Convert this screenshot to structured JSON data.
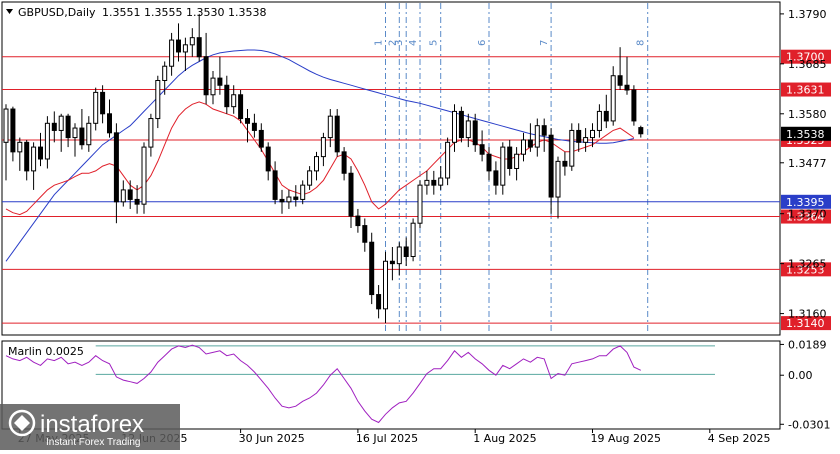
{
  "header": {
    "symbol_label": "GBPUSD,Daily",
    "ohlc_label": "1.3551 1.3555 1.3530 1.3538"
  },
  "watermark": {
    "brand": "instaforex",
    "tagline": "Instant Forex Trading"
  },
  "colors": {
    "background": "#ffffff",
    "grid": "#c8ccd0",
    "candle_bull": "#ffffff",
    "candle_bear": "#000000",
    "candle_outline": "#000000",
    "ma_fast": "#e0202a",
    "ma_slow": "#2a3ec8",
    "level_red": "#e0202a",
    "level_blue": "#2a3ec8",
    "level_label_red": "#e0202a",
    "level_label_blue": "#2a3ec8",
    "cycle_line": "#5a8ac8",
    "marlin": "#a020c0",
    "marlin_channel": "#5aa8a0"
  },
  "chart_data": [
    {
      "type": "candlestick",
      "title": "GBPUSD,Daily",
      "ylim": [
        1.3115,
        1.3815
      ],
      "y_ticks": [
        1.379,
        1.3685,
        1.358,
        1.3477,
        1.337,
        1.3265,
        1.316
      ],
      "y_tick_labels": [
        "1.3790",
        "1.3685",
        "1.3580",
        "1.3477",
        "1.3370",
        "1.3265",
        "1.3160"
      ],
      "current_price_label": "1.3538",
      "current_price": 1.3538,
      "x_tick_labels": [
        "27 May 2025",
        "12 Jun 2025",
        "30 Jun 2025",
        "16 Jul 2025",
        "1 Aug 2025",
        "19 Aug 2025",
        "4 Sep 2025"
      ],
      "x_tick_indices": [
        2,
        17,
        34,
        51,
        68,
        85,
        102
      ],
      "candles": [
        {
          "o": 1.352,
          "h": 1.36,
          "l": 1.344,
          "c": 1.359
        },
        {
          "o": 1.359,
          "h": 1.3595,
          "l": 1.348,
          "c": 1.35
        },
        {
          "o": 1.35,
          "h": 1.353,
          "l": 1.346,
          "c": 1.352
        },
        {
          "o": 1.352,
          "h": 1.3525,
          "l": 1.344,
          "c": 1.346
        },
        {
          "o": 1.346,
          "h": 1.352,
          "l": 1.342,
          "c": 1.351
        },
        {
          "o": 1.351,
          "h": 1.354,
          "l": 1.347,
          "c": 1.3485
        },
        {
          "o": 1.3485,
          "h": 1.3575,
          "l": 1.3465,
          "c": 1.356
        },
        {
          "o": 1.356,
          "h": 1.3585,
          "l": 1.352,
          "c": 1.3545
        },
        {
          "o": 1.3545,
          "h": 1.358,
          "l": 1.35,
          "c": 1.3575
        },
        {
          "o": 1.3575,
          "h": 1.358,
          "l": 1.351,
          "c": 1.353
        },
        {
          "o": 1.353,
          "h": 1.356,
          "l": 1.349,
          "c": 1.355
        },
        {
          "o": 1.355,
          "h": 1.359,
          "l": 1.3505,
          "c": 1.3515
        },
        {
          "o": 1.3515,
          "h": 1.3575,
          "l": 1.35,
          "c": 1.356
        },
        {
          "o": 1.356,
          "h": 1.3635,
          "l": 1.3545,
          "c": 1.3625
        },
        {
          "o": 1.3625,
          "h": 1.364,
          "l": 1.356,
          "c": 1.358
        },
        {
          "o": 1.358,
          "h": 1.361,
          "l": 1.353,
          "c": 1.354
        },
        {
          "o": 1.354,
          "h": 1.356,
          "l": 1.335,
          "c": 1.3395
        },
        {
          "o": 1.3395,
          "h": 1.344,
          "l": 1.3385,
          "c": 1.342
        },
        {
          "o": 1.342,
          "h": 1.344,
          "l": 1.338,
          "c": 1.34
        },
        {
          "o": 1.34,
          "h": 1.343,
          "l": 1.337,
          "c": 1.339
        },
        {
          "o": 1.339,
          "h": 1.352,
          "l": 1.337,
          "c": 1.351
        },
        {
          "o": 1.351,
          "h": 1.358,
          "l": 1.349,
          "c": 1.357
        },
        {
          "o": 1.357,
          "h": 1.366,
          "l": 1.355,
          "c": 1.365
        },
        {
          "o": 1.365,
          "h": 1.369,
          "l": 1.362,
          "c": 1.368
        },
        {
          "o": 1.368,
          "h": 1.375,
          "l": 1.366,
          "c": 1.3735
        },
        {
          "o": 1.3735,
          "h": 1.377,
          "l": 1.369,
          "c": 1.371
        },
        {
          "o": 1.371,
          "h": 1.374,
          "l": 1.367,
          "c": 1.3725
        },
        {
          "o": 1.3725,
          "h": 1.376,
          "l": 1.37,
          "c": 1.374
        },
        {
          "o": 1.374,
          "h": 1.379,
          "l": 1.369,
          "c": 1.37
        },
        {
          "o": 1.37,
          "h": 1.375,
          "l": 1.36,
          "c": 1.362
        },
        {
          "o": 1.362,
          "h": 1.367,
          "l": 1.36,
          "c": 1.3655
        },
        {
          "o": 1.3655,
          "h": 1.37,
          "l": 1.362,
          "c": 1.364
        },
        {
          "o": 1.364,
          "h": 1.366,
          "l": 1.358,
          "c": 1.3595
        },
        {
          "o": 1.3595,
          "h": 1.364,
          "l": 1.358,
          "c": 1.362
        },
        {
          "o": 1.362,
          "h": 1.363,
          "l": 1.356,
          "c": 1.357
        },
        {
          "o": 1.357,
          "h": 1.359,
          "l": 1.352,
          "c": 1.356
        },
        {
          "o": 1.356,
          "h": 1.358,
          "l": 1.353,
          "c": 1.3545
        },
        {
          "o": 1.3545,
          "h": 1.356,
          "l": 1.35,
          "c": 1.351
        },
        {
          "o": 1.351,
          "h": 1.352,
          "l": 1.344,
          "c": 1.346
        },
        {
          "o": 1.346,
          "h": 1.348,
          "l": 1.339,
          "c": 1.34
        },
        {
          "o": 1.34,
          "h": 1.342,
          "l": 1.337,
          "c": 1.3395
        },
        {
          "o": 1.3395,
          "h": 1.342,
          "l": 1.338,
          "c": 1.3405
        },
        {
          "o": 1.3405,
          "h": 1.343,
          "l": 1.3385,
          "c": 1.34
        },
        {
          "o": 1.34,
          "h": 1.344,
          "l": 1.339,
          "c": 1.343
        },
        {
          "o": 1.343,
          "h": 1.347,
          "l": 1.342,
          "c": 1.346
        },
        {
          "o": 1.346,
          "h": 1.35,
          "l": 1.344,
          "c": 1.349
        },
        {
          "o": 1.349,
          "h": 1.354,
          "l": 1.347,
          "c": 1.353
        },
        {
          "o": 1.353,
          "h": 1.359,
          "l": 1.351,
          "c": 1.3575
        },
        {
          "o": 1.3575,
          "h": 1.359,
          "l": 1.349,
          "c": 1.35
        },
        {
          "o": 1.35,
          "h": 1.351,
          "l": 1.344,
          "c": 1.3455
        },
        {
          "o": 1.3455,
          "h": 1.347,
          "l": 1.334,
          "c": 1.3365
        },
        {
          "o": 1.3365,
          "h": 1.338,
          "l": 1.333,
          "c": 1.3345
        },
        {
          "o": 1.3345,
          "h": 1.336,
          "l": 1.329,
          "c": 1.331
        },
        {
          "o": 1.331,
          "h": 1.333,
          "l": 1.318,
          "c": 1.32
        },
        {
          "o": 1.32,
          "h": 1.322,
          "l": 1.315,
          "c": 1.317
        },
        {
          "o": 1.317,
          "h": 1.329,
          "l": 1.314,
          "c": 1.327
        },
        {
          "o": 1.327,
          "h": 1.33,
          "l": 1.323,
          "c": 1.3265
        },
        {
          "o": 1.3265,
          "h": 1.331,
          "l": 1.324,
          "c": 1.33
        },
        {
          "o": 1.33,
          "h": 1.332,
          "l": 1.326,
          "c": 1.328
        },
        {
          "o": 1.328,
          "h": 1.336,
          "l": 1.327,
          "c": 1.335
        },
        {
          "o": 1.335,
          "h": 1.344,
          "l": 1.334,
          "c": 1.343
        },
        {
          "o": 1.343,
          "h": 1.346,
          "l": 1.341,
          "c": 1.344
        },
        {
          "o": 1.344,
          "h": 1.346,
          "l": 1.341,
          "c": 1.343
        },
        {
          "o": 1.343,
          "h": 1.347,
          "l": 1.342,
          "c": 1.3445
        },
        {
          "o": 1.3445,
          "h": 1.353,
          "l": 1.343,
          "c": 1.352
        },
        {
          "o": 1.352,
          "h": 1.36,
          "l": 1.35,
          "c": 1.3585
        },
        {
          "o": 1.3585,
          "h": 1.3595,
          "l": 1.352,
          "c": 1.353
        },
        {
          "o": 1.353,
          "h": 1.358,
          "l": 1.351,
          "c": 1.3565
        },
        {
          "o": 1.3565,
          "h": 1.358,
          "l": 1.35,
          "c": 1.3515
        },
        {
          "o": 1.3515,
          "h": 1.3545,
          "l": 1.348,
          "c": 1.3495
        },
        {
          "o": 1.3495,
          "h": 1.351,
          "l": 1.344,
          "c": 1.346
        },
        {
          "o": 1.346,
          "h": 1.348,
          "l": 1.341,
          "c": 1.343
        },
        {
          "o": 1.343,
          "h": 1.352,
          "l": 1.341,
          "c": 1.351
        },
        {
          "o": 1.351,
          "h": 1.3525,
          "l": 1.345,
          "c": 1.3465
        },
        {
          "o": 1.3465,
          "h": 1.351,
          "l": 1.344,
          "c": 1.3495
        },
        {
          "o": 1.3495,
          "h": 1.354,
          "l": 1.348,
          "c": 1.3525
        },
        {
          "o": 1.3525,
          "h": 1.356,
          "l": 1.35,
          "c": 1.351
        },
        {
          "o": 1.351,
          "h": 1.357,
          "l": 1.349,
          "c": 1.3555
        },
        {
          "o": 1.3555,
          "h": 1.357,
          "l": 1.35,
          "c": 1.3535
        },
        {
          "o": 1.3535,
          "h": 1.355,
          "l": 1.337,
          "c": 1.3405
        },
        {
          "o": 1.3405,
          "h": 1.349,
          "l": 1.336,
          "c": 1.348
        },
        {
          "o": 1.348,
          "h": 1.35,
          "l": 1.345,
          "c": 1.347
        },
        {
          "o": 1.347,
          "h": 1.356,
          "l": 1.346,
          "c": 1.3545
        },
        {
          "o": 1.3545,
          "h": 1.356,
          "l": 1.35,
          "c": 1.352
        },
        {
          "o": 1.352,
          "h": 1.355,
          "l": 1.35,
          "c": 1.353
        },
        {
          "o": 1.353,
          "h": 1.356,
          "l": 1.351,
          "c": 1.3545
        },
        {
          "o": 1.3545,
          "h": 1.36,
          "l": 1.353,
          "c": 1.3585
        },
        {
          "o": 1.3585,
          "h": 1.362,
          "l": 1.355,
          "c": 1.3565
        },
        {
          "o": 1.3565,
          "h": 1.368,
          "l": 1.3555,
          "c": 1.366
        },
        {
          "o": 1.366,
          "h": 1.372,
          "l": 1.363,
          "c": 1.364
        },
        {
          "o": 1.364,
          "h": 1.37,
          "l": 1.362,
          "c": 1.363
        },
        {
          "o": 1.363,
          "h": 1.364,
          "l": 1.3555,
          "c": 1.3565
        },
        {
          "o": 1.3551,
          "h": 1.3555,
          "l": 1.353,
          "c": 1.3538
        }
      ],
      "ma_fast": {
        "start_index": 0,
        "values": [
          1.338,
          1.3372,
          1.3368,
          1.3375,
          1.339,
          1.3405,
          1.342,
          1.343,
          1.3435,
          1.344,
          1.3448,
          1.3455,
          1.3455,
          1.346,
          1.347,
          1.3475,
          1.347,
          1.345,
          1.343,
          1.342,
          1.343,
          1.345,
          1.348,
          1.3515,
          1.355,
          1.3575,
          1.359,
          1.36,
          1.3605,
          1.36,
          1.359,
          1.3585,
          1.358,
          1.3575,
          1.3565,
          1.3545,
          1.3525,
          1.3505,
          1.348,
          1.3455,
          1.343,
          1.342,
          1.3415,
          1.341,
          1.3415,
          1.3425,
          1.344,
          1.3465,
          1.349,
          1.3495,
          1.3485,
          1.346,
          1.343,
          1.3395,
          1.338,
          1.339,
          1.3405,
          1.342,
          1.343,
          1.344,
          1.345,
          1.346,
          1.3475,
          1.349,
          1.3505,
          1.352,
          1.3525,
          1.3525,
          1.352,
          1.351,
          1.3495,
          1.349,
          1.3485,
          1.3485,
          1.349,
          1.35,
          1.351,
          1.352,
          1.3525,
          1.352,
          1.351,
          1.35,
          1.35,
          1.3505,
          1.351,
          1.3515,
          1.3525,
          1.3535,
          1.3545,
          1.355,
          1.354,
          1.353
        ]
      },
      "ma_slow": {
        "start_index": 0,
        "values": [
          1.327,
          1.329,
          1.331,
          1.333,
          1.335,
          1.337,
          1.339,
          1.341,
          1.3425,
          1.344,
          1.3455,
          1.347,
          1.3485,
          1.35,
          1.3515,
          1.3525,
          1.3535,
          1.3545,
          1.3555,
          1.357,
          1.3585,
          1.36,
          1.3615,
          1.363,
          1.3645,
          1.366,
          1.3672,
          1.3682,
          1.369,
          1.3698,
          1.3704,
          1.3708,
          1.371,
          1.3712,
          1.3713,
          1.3714,
          1.3714,
          1.3713,
          1.371,
          1.3706,
          1.37,
          1.3694,
          1.3686,
          1.3678,
          1.367,
          1.3663,
          1.3657,
          1.3652,
          1.3648,
          1.3644,
          1.364,
          1.3636,
          1.3632,
          1.3628,
          1.3624,
          1.362,
          1.3616,
          1.3612,
          1.3608,
          1.3605,
          1.3602,
          1.3598,
          1.3594,
          1.359,
          1.3586,
          1.3582,
          1.3578,
          1.3574,
          1.357,
          1.3566,
          1.3562,
          1.3558,
          1.3554,
          1.355,
          1.3546,
          1.3542,
          1.3538,
          1.3535,
          1.3532,
          1.3529,
          1.3526,
          1.3524,
          1.3522,
          1.3521,
          1.352,
          1.3519,
          1.3518,
          1.3518,
          1.3519,
          1.3522,
          1.3525,
          1.3528
        ]
      },
      "horizontal_levels": [
        {
          "value": 1.37,
          "label": "1.3700",
          "color": "red"
        },
        {
          "value": 1.3631,
          "label": "1.3631",
          "color": "red"
        },
        {
          "value": 1.3525,
          "label": "1.3525",
          "color": "red"
        },
        {
          "value": 1.3395,
          "label": "1.3395",
          "color": "blue"
        },
        {
          "value": 1.3364,
          "label": "1.3364",
          "color": "red"
        },
        {
          "value": 1.3253,
          "label": "1.3253",
          "color": "red"
        },
        {
          "value": 1.314,
          "label": "1.3140",
          "color": "red"
        }
      ],
      "cycle_lines": [
        {
          "index": 55,
          "label": "1"
        },
        {
          "index": 57,
          "label": "2"
        },
        {
          "index": 58,
          "label": "3"
        },
        {
          "index": 60,
          "label": "4"
        },
        {
          "index": 63,
          "label": "5"
        },
        {
          "index": 70,
          "label": "6"
        },
        {
          "index": 79,
          "label": "7"
        },
        {
          "index": 93,
          "label": "8"
        }
      ]
    },
    {
      "type": "line",
      "title": "Marlin 0.0025",
      "ylim": [
        -0.033,
        0.021
      ],
      "y_ticks": [
        0.0189,
        0.0,
        -0.0301
      ],
      "y_tick_labels": [
        "0.0189",
        "0.00",
        "-0.0301"
      ],
      "channel_upper": 0.018,
      "channel_lower": 0.0005,
      "channel_start_index": 13,
      "series": [
        {
          "values": [
            0.012,
            0.01,
            0.009,
            0.011,
            0.008,
            0.006,
            0.01,
            0.009,
            0.011,
            0.007,
            0.008,
            0.006,
            0.008,
            0.012,
            0.009,
            0.007,
            -0.001,
            -0.003,
            -0.004,
            -0.005,
            -0.002,
            0.002,
            0.008,
            0.012,
            0.016,
            0.018,
            0.017,
            0.0185,
            0.017,
            0.013,
            0.014,
            0.015,
            0.012,
            0.013,
            0.009,
            0.006,
            0.002,
            -0.003,
            -0.008,
            -0.014,
            -0.019,
            -0.02,
            -0.019,
            -0.016,
            -0.014,
            -0.011,
            -0.006,
            0.0,
            0.004,
            -0.002,
            -0.008,
            -0.016,
            -0.022,
            -0.027,
            -0.029,
            -0.024,
            -0.02,
            -0.017,
            -0.016,
            -0.011,
            -0.005,
            0.001,
            0.004,
            0.004,
            0.009,
            0.015,
            0.011,
            0.014,
            0.01,
            0.007,
            0.003,
            0.0,
            0.006,
            0.004,
            0.007,
            0.01,
            0.008,
            0.011,
            0.01,
            -0.002,
            0.001,
            0.0,
            0.007,
            0.008,
            0.009,
            0.01,
            0.012,
            0.012,
            0.016,
            0.018,
            0.014,
            0.005,
            0.003
          ]
        }
      ]
    }
  ]
}
